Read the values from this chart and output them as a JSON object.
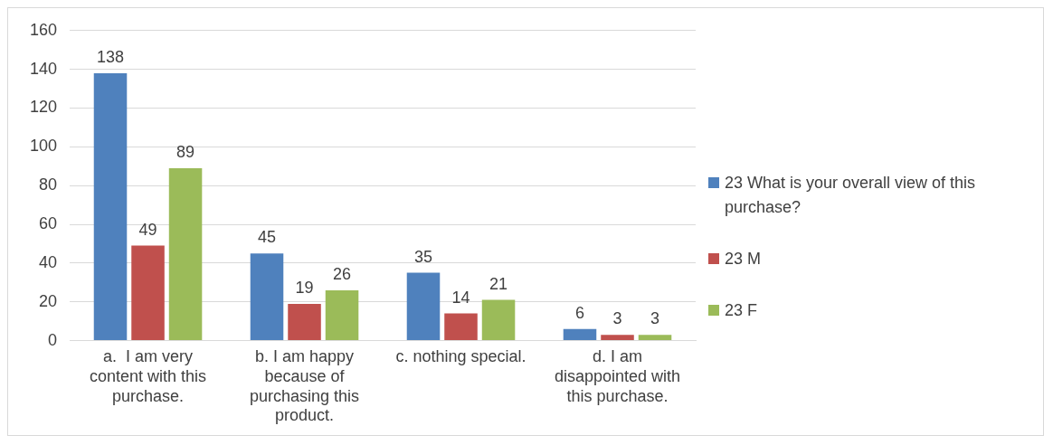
{
  "chart_data": {
    "type": "bar",
    "categories": [
      "a.  I am very content with this purchase.",
      "b. I am happy because of purchasing this product.",
      "c. nothing special.",
      "d. I am disappointed with this purchase."
    ],
    "series": [
      {
        "name": "23 What is your overall view of this purchase?",
        "color": "#4f81bd",
        "values": [
          138,
          45,
          35,
          6
        ]
      },
      {
        "name": "23 M",
        "color": "#c0504d",
        "values": [
          49,
          19,
          14,
          3
        ]
      },
      {
        "name": "23 F",
        "color": "#9bbb59",
        "values": [
          89,
          26,
          21,
          3
        ]
      }
    ],
    "ylim": [
      0,
      160
    ],
    "yticks": [
      0,
      20,
      40,
      60,
      80,
      100,
      120,
      140,
      160
    ],
    "grid": "y",
    "legend": "right",
    "data_labels": true
  }
}
